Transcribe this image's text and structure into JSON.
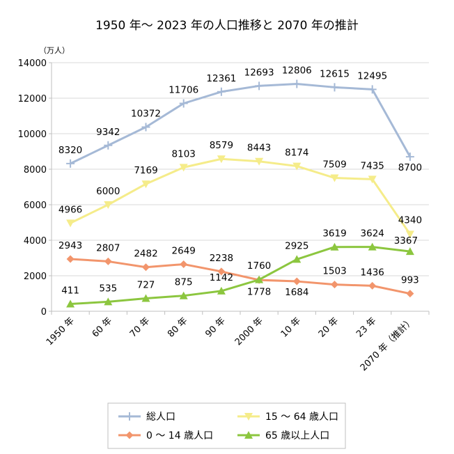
{
  "chart_data": {
    "type": "line",
    "title": "1950 年〜 2023 年の人口推移と 2070 年の推計",
    "unit_label": "（万人）",
    "categories": [
      "1950 年",
      "60 年",
      "70 年",
      "80 年",
      "90 年",
      "2000 年",
      "10 年",
      "20 年",
      "23 年",
      "2070 年（推計）"
    ],
    "ylim": [
      0,
      14000
    ],
    "yticks": [
      "0",
      "2000",
      "4000",
      "6000",
      "8000",
      "10000",
      "12000",
      "14000"
    ],
    "grid": true,
    "legend_position": "bottom",
    "series": [
      {
        "name": "総人口",
        "color": "#a5b9d6",
        "marker": "plus",
        "values": [
          8320,
          9342,
          10372,
          11706,
          12361,
          12693,
          12806,
          12615,
          12495,
          8700
        ]
      },
      {
        "name": "15 〜 64 歳人口",
        "color": "#f5ec8a",
        "marker": "triangle-down",
        "values": [
          4966,
          6000,
          7169,
          8103,
          8579,
          8443,
          8174,
          7509,
          7435,
          4340
        ]
      },
      {
        "name": "0 〜 14 歳人口",
        "color": "#f2956c",
        "marker": "diamond",
        "values": [
          2943,
          2807,
          2482,
          2649,
          2238,
          1760,
          1684,
          1503,
          1436,
          993
        ]
      },
      {
        "name": "65 歳以上人口",
        "color": "#8cc63f",
        "marker": "triangle-up",
        "values": [
          411,
          535,
          727,
          875,
          1142,
          1778,
          2925,
          3619,
          3624,
          3367
        ]
      }
    ]
  }
}
